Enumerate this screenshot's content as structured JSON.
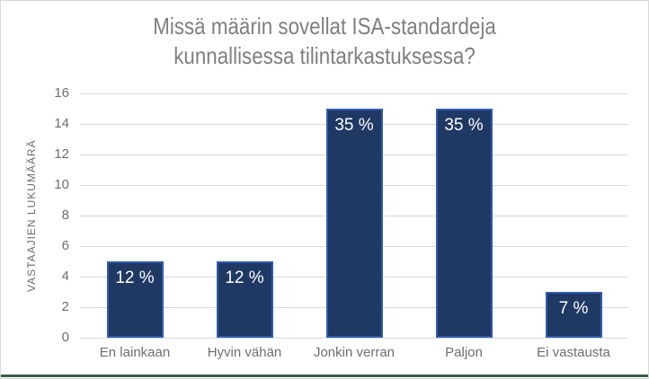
{
  "title": {
    "line1": "Missä määrin sovellat ISA-standardeja",
    "line2": "kunnallisessa tilintarkastuksessa?"
  },
  "y_axis_title": "VASTAAJIEN LUKUMÄÄRÄ",
  "chart_data": {
    "type": "bar",
    "title": "Missä määrin sovellat ISA-standardeja kunnallisessa tilintarkastuksessa?",
    "xlabel": "",
    "ylabel": "VASTAAJIEN LUKUMÄÄRÄ",
    "categories": [
      "En lainkaan",
      "Hyvin vähän",
      "Jonkin verran",
      "Paljon",
      "Ei vastausta"
    ],
    "values": [
      5,
      5,
      15,
      15,
      3
    ],
    "data_labels": [
      "12 %",
      "12 %",
      "35 %",
      "35 %",
      "7 %"
    ],
    "ylim": [
      0,
      16
    ],
    "yticks": [
      0,
      2,
      4,
      6,
      8,
      10,
      12,
      14,
      16
    ],
    "grid": true,
    "legend": "none",
    "colors": {
      "bar_fill": "#1f3864",
      "bar_border": "#2f5cb0",
      "gridline": "#d9d9d9",
      "axis_text": "#6e6e6e",
      "title_text": "#7f7f7f",
      "data_label_text": "#ffffff",
      "chart_border": "#d9d9d9",
      "bottom_rule": "#3e5c46"
    }
  }
}
